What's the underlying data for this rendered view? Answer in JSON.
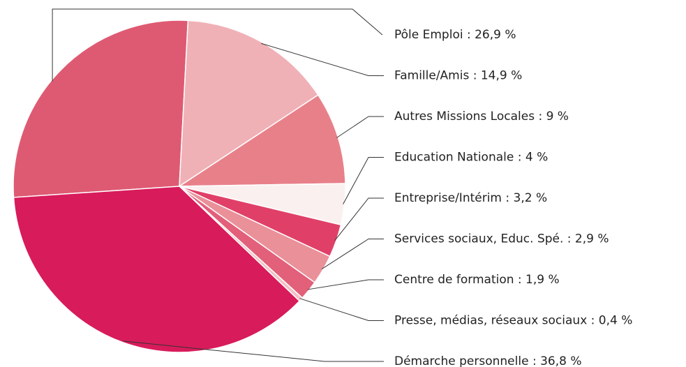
{
  "chart_data": {
    "type": "pie",
    "labels": [
      "Pôle Emploi : 26,9 %",
      "Famille/Amis : 14,9 %",
      "Autres Missions Locales : 9 %",
      "Education Nationale : 4 %",
      "Entreprise/Intérim : 3,2 %",
      "Services sociaux, Educ. Spé. : 2,9 %",
      "Centre de formation : 1,9 %",
      "Presse, médias, réseaux sociaux : 0,4 %",
      "Démarche personnelle : 36,8 %"
    ],
    "values": [
      26.9,
      14.9,
      9,
      4,
      3.2,
      2.9,
      1.9,
      0.4,
      36.8
    ],
    "colors": [
      "#de5a72",
      "#f0b1b6",
      "#e8808a",
      "#fbf0f0",
      "#e04068",
      "#ea9099",
      "#e2607a",
      "#f4c0c4",
      "#d81b5a"
    ]
  }
}
